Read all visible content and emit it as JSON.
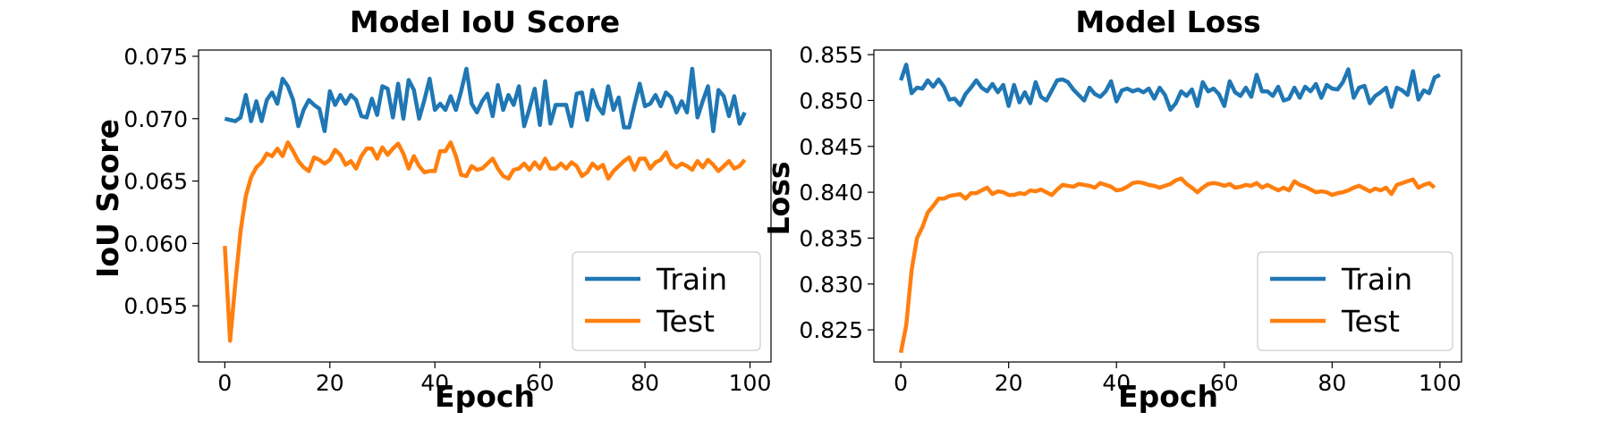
{
  "chart_data": [
    {
      "type": "line",
      "title": "Model IoU Score",
      "xlabel": "Epoch",
      "ylabel": "IoU Score",
      "xlim": [
        -5,
        104
      ],
      "ylim": [
        0.0505,
        0.0755
      ],
      "xticks": [
        0,
        20,
        40,
        60,
        80,
        100
      ],
      "xtick_labels": [
        "0",
        "20",
        "40",
        "60",
        "80",
        "100"
      ],
      "yticks": [
        0.055,
        0.06,
        0.065,
        0.07,
        0.075
      ],
      "ytick_labels": [
        "0.055",
        "0.060",
        "0.065",
        "0.070",
        "0.075"
      ],
      "grid": false,
      "legend": "lower-right",
      "series": [
        {
          "name": "Train",
          "color": "#1f77b4",
          "values": [
            0.07,
            0.0699,
            0.0698,
            0.0701,
            0.0719,
            0.0698,
            0.0714,
            0.0698,
            0.0715,
            0.0721,
            0.0712,
            0.0732,
            0.0726,
            0.0715,
            0.0694,
            0.0707,
            0.0715,
            0.0711,
            0.0708,
            0.069,
            0.0722,
            0.0711,
            0.0719,
            0.0712,
            0.0719,
            0.0715,
            0.0702,
            0.0701,
            0.0716,
            0.0703,
            0.0726,
            0.0724,
            0.0701,
            0.0728,
            0.07,
            0.0731,
            0.0723,
            0.07,
            0.0715,
            0.0732,
            0.0707,
            0.0712,
            0.0707,
            0.0718,
            0.0707,
            0.0722,
            0.074,
            0.0712,
            0.0705,
            0.0714,
            0.072,
            0.0702,
            0.0727,
            0.0707,
            0.0719,
            0.0711,
            0.0726,
            0.0694,
            0.0708,
            0.0724,
            0.0695,
            0.073,
            0.0696,
            0.0711,
            0.0711,
            0.0711,
            0.0694,
            0.072,
            0.0721,
            0.0699,
            0.0723,
            0.071,
            0.0704,
            0.0726,
            0.0707,
            0.0717,
            0.0693,
            0.0693,
            0.0711,
            0.0728,
            0.071,
            0.0712,
            0.0719,
            0.071,
            0.0721,
            0.0717,
            0.0705,
            0.0714,
            0.0705,
            0.074,
            0.0701,
            0.0714,
            0.0726,
            0.069,
            0.0723,
            0.0718,
            0.0702,
            0.0718,
            0.0696,
            0.0705
          ]
        },
        {
          "name": "Test",
          "color": "#ff7f0e",
          "values": [
            0.0598,
            0.0522,
            0.0568,
            0.061,
            0.0638,
            0.0653,
            0.0661,
            0.0665,
            0.0672,
            0.067,
            0.0676,
            0.067,
            0.0681,
            0.0674,
            0.0666,
            0.0661,
            0.0658,
            0.0669,
            0.0667,
            0.0664,
            0.0667,
            0.0675,
            0.0671,
            0.0663,
            0.0666,
            0.066,
            0.067,
            0.0676,
            0.0676,
            0.0668,
            0.0677,
            0.0671,
            0.0676,
            0.068,
            0.0672,
            0.066,
            0.067,
            0.0662,
            0.0657,
            0.0658,
            0.0658,
            0.0674,
            0.0674,
            0.0681,
            0.067,
            0.0655,
            0.0654,
            0.0662,
            0.0659,
            0.066,
            0.0664,
            0.0668,
            0.066,
            0.0654,
            0.0652,
            0.0659,
            0.066,
            0.0664,
            0.0659,
            0.0665,
            0.066,
            0.0668,
            0.066,
            0.066,
            0.0664,
            0.066,
            0.0665,
            0.0662,
            0.0654,
            0.0657,
            0.0664,
            0.066,
            0.0663,
            0.0652,
            0.0658,
            0.0662,
            0.0666,
            0.0669,
            0.0659,
            0.0668,
            0.0668,
            0.066,
            0.0665,
            0.0667,
            0.0673,
            0.0664,
            0.0661,
            0.0664,
            0.0662,
            0.0659,
            0.0666,
            0.0661,
            0.0667,
            0.0663,
            0.0658,
            0.0662,
            0.0666,
            0.066,
            0.0662,
            0.0667
          ]
        }
      ]
    },
    {
      "type": "line",
      "title": "Model Loss",
      "xlabel": "Epoch",
      "ylabel": "Loss",
      "xlim": [
        -5,
        104
      ],
      "ylim": [
        0.8215,
        0.8555
      ],
      "xticks": [
        0,
        20,
        40,
        60,
        80,
        100
      ],
      "xtick_labels": [
        "0",
        "20",
        "40",
        "60",
        "80",
        "100"
      ],
      "yticks": [
        0.825,
        0.83,
        0.835,
        0.84,
        0.845,
        0.85,
        0.855
      ],
      "ytick_labels": [
        "0.825",
        "0.830",
        "0.835",
        "0.840",
        "0.845",
        "0.850",
        "0.855"
      ],
      "grid": false,
      "legend": "lower-right",
      "series": [
        {
          "name": "Train",
          "color": "#1f77b4",
          "values": [
            0.8522,
            0.8539,
            0.8508,
            0.8514,
            0.8513,
            0.8522,
            0.8515,
            0.8523,
            0.8515,
            0.8501,
            0.8502,
            0.8495,
            0.8507,
            0.8514,
            0.8522,
            0.8514,
            0.851,
            0.8518,
            0.8509,
            0.8517,
            0.8494,
            0.8517,
            0.8498,
            0.8509,
            0.8497,
            0.852,
            0.8504,
            0.85,
            0.8511,
            0.8522,
            0.8523,
            0.852,
            0.8512,
            0.8506,
            0.85,
            0.8514,
            0.8507,
            0.8504,
            0.851,
            0.8521,
            0.8499,
            0.8511,
            0.8513,
            0.851,
            0.8512,
            0.8509,
            0.8513,
            0.8502,
            0.8514,
            0.8506,
            0.849,
            0.8497,
            0.851,
            0.8505,
            0.8512,
            0.8494,
            0.852,
            0.851,
            0.8513,
            0.8507,
            0.8494,
            0.8521,
            0.8509,
            0.8505,
            0.8514,
            0.8504,
            0.8528,
            0.851,
            0.851,
            0.8505,
            0.8515,
            0.85,
            0.8502,
            0.8514,
            0.8503,
            0.8515,
            0.851,
            0.8518,
            0.8503,
            0.8517,
            0.8513,
            0.8512,
            0.852,
            0.8534,
            0.8503,
            0.8514,
            0.8516,
            0.8497,
            0.8505,
            0.8509,
            0.8514,
            0.8493,
            0.8514,
            0.8511,
            0.8506,
            0.8532,
            0.8501,
            0.8511,
            0.8508,
            0.8525,
            0.8528
          ]
        },
        {
          "name": "Test",
          "color": "#ff7f0e",
          "values": [
            0.8225,
            0.8255,
            0.8315,
            0.835,
            0.8362,
            0.8378,
            0.8385,
            0.8393,
            0.8393,
            0.8396,
            0.8397,
            0.8398,
            0.8393,
            0.8399,
            0.8399,
            0.8402,
            0.8405,
            0.8398,
            0.8401,
            0.84,
            0.8397,
            0.8397,
            0.8399,
            0.8398,
            0.8402,
            0.8401,
            0.8403,
            0.84,
            0.8397,
            0.8403,
            0.8408,
            0.8407,
            0.8406,
            0.8409,
            0.8408,
            0.8407,
            0.8405,
            0.841,
            0.8408,
            0.8406,
            0.8402,
            0.8403,
            0.8406,
            0.841,
            0.8411,
            0.841,
            0.8408,
            0.8407,
            0.8405,
            0.8407,
            0.8409,
            0.8413,
            0.8415,
            0.8409,
            0.8405,
            0.84,
            0.8405,
            0.8409,
            0.841,
            0.8409,
            0.8407,
            0.8409,
            0.8405,
            0.8406,
            0.8408,
            0.8407,
            0.841,
            0.8405,
            0.8408,
            0.8405,
            0.8402,
            0.8405,
            0.8402,
            0.8412,
            0.8408,
            0.8406,
            0.8403,
            0.84,
            0.8401,
            0.84,
            0.8397,
            0.8399,
            0.84,
            0.8402,
            0.8405,
            0.8407,
            0.8404,
            0.8401,
            0.8404,
            0.8402,
            0.8405,
            0.8398,
            0.8408,
            0.841,
            0.8412,
            0.8414,
            0.8405,
            0.8408,
            0.841,
            0.8405
          ]
        }
      ]
    }
  ]
}
